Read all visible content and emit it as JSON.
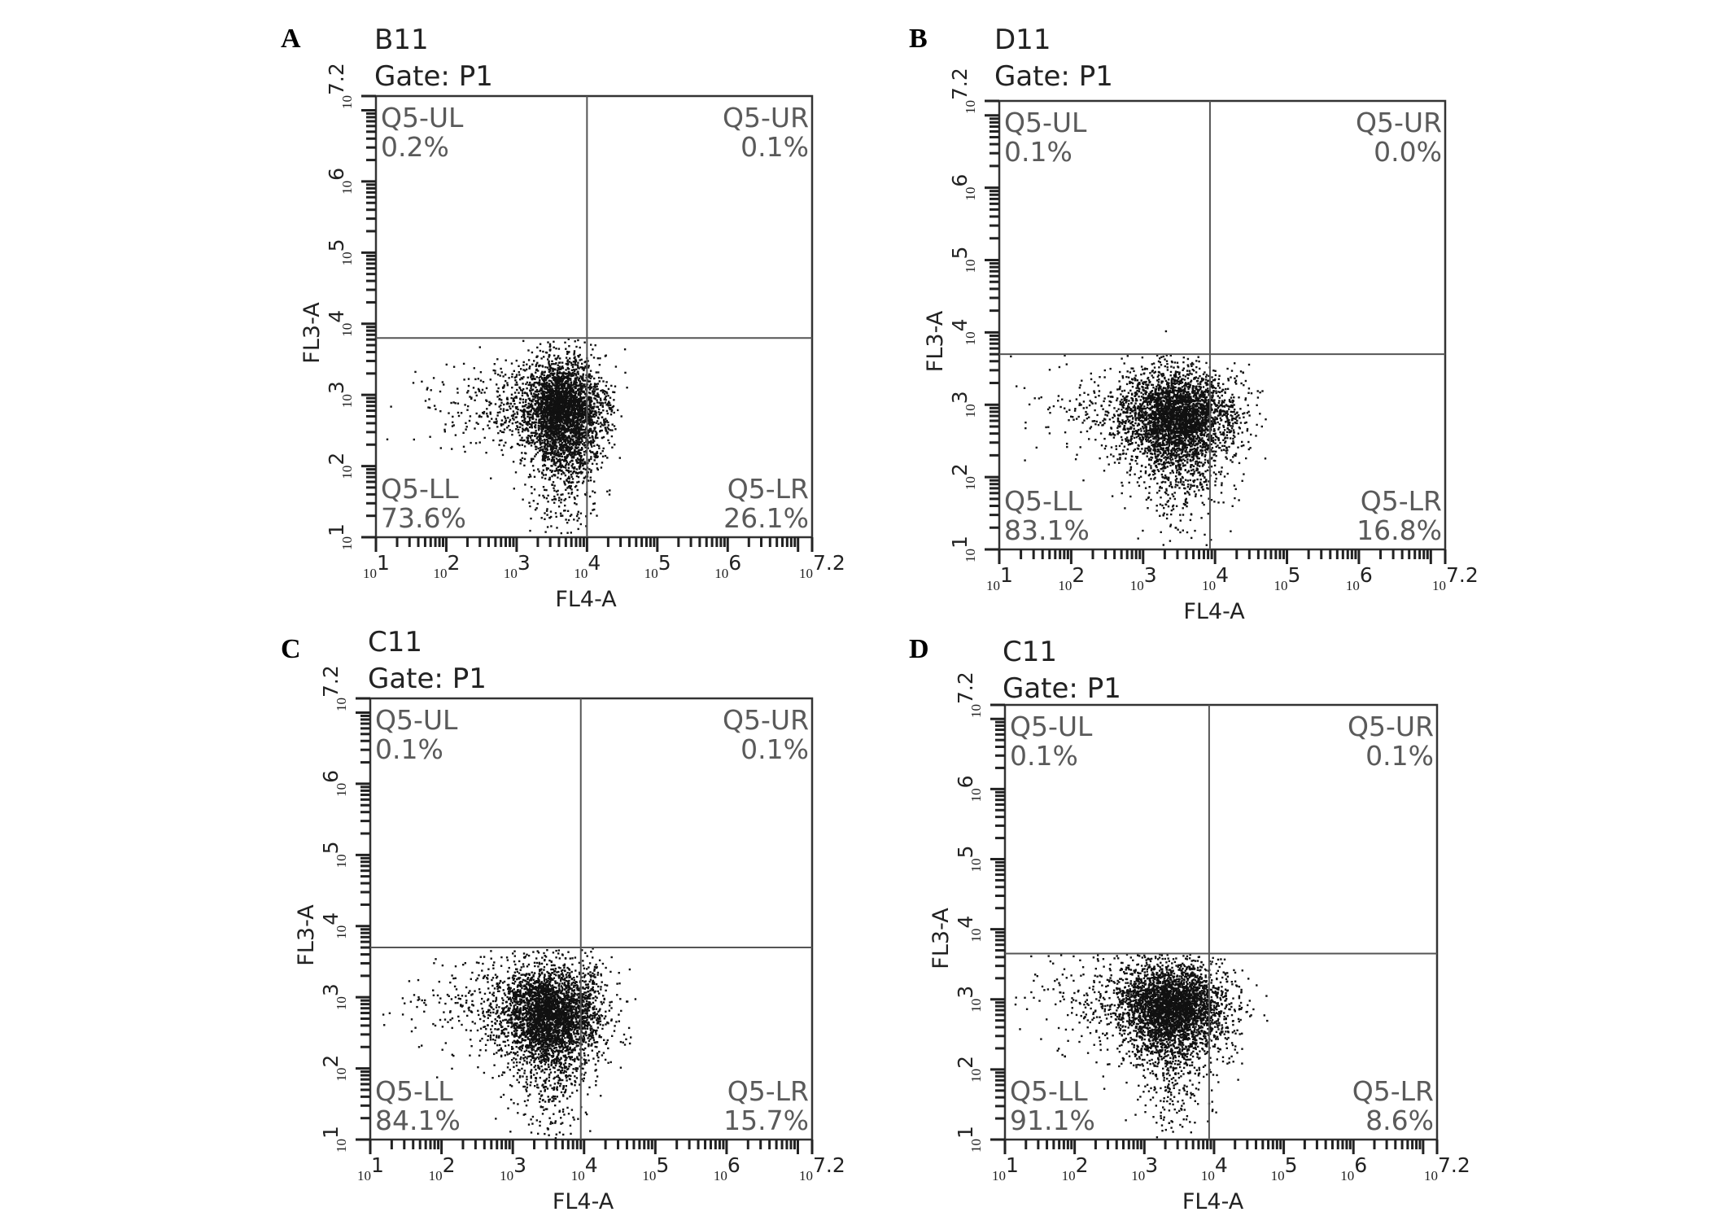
{
  "chart_data": [
    {
      "type": "scatter",
      "panel_label": "A",
      "sample": "B11",
      "gate": "Gate: P1",
      "xlabel": "FL4-A",
      "ylabel": "FL3-A",
      "x_scale": "log",
      "y_scale": "log",
      "xlim": [
        10,
        15848932
      ],
      "ylim": [
        10,
        15848932
      ],
      "x_tick_labels": [
        "1",
        "2",
        "3",
        "4",
        "5",
        "6",
        "7.2"
      ],
      "y_tick_labels": [
        "1",
        "2",
        "3",
        "4",
        "5",
        "6",
        "7.2"
      ],
      "gate_x": 10000,
      "gate_y": 6300,
      "quadrants": [
        {
          "name": "Q5-UL",
          "value": "0.2%"
        },
        {
          "name": "Q5-UR",
          "value": "0.1%"
        },
        {
          "name": "Q5-LL",
          "value": "73.6%"
        },
        {
          "name": "Q5-LR",
          "value": "26.1%"
        }
      ],
      "population": {
        "center_x": 4500,
        "center_y": 700,
        "spread_x_decades": 0.28,
        "spread_y_decades": 0.45
      }
    },
    {
      "type": "scatter",
      "panel_label": "B",
      "sample": "D11",
      "gate": "Gate: P1",
      "xlabel": "FL4-A",
      "ylabel": "FL3-A",
      "x_scale": "log",
      "y_scale": "log",
      "xlim": [
        10,
        15848932
      ],
      "ylim": [
        10,
        15848932
      ],
      "x_tick_labels": [
        "1",
        "2",
        "3",
        "4",
        "5",
        "6",
        "7.2"
      ],
      "y_tick_labels": [
        "1",
        "2",
        "3",
        "4",
        "5",
        "6",
        "7.2"
      ],
      "gate_x": 8500,
      "gate_y": 5000,
      "quadrants": [
        {
          "name": "Q5-UL",
          "value": "0.1%"
        },
        {
          "name": "Q5-UR",
          "value": "0.0%"
        },
        {
          "name": "Q5-LL",
          "value": "83.1%"
        },
        {
          "name": "Q5-LR",
          "value": "16.8%"
        }
      ],
      "population": {
        "center_x": 3200,
        "center_y": 800,
        "spread_x_decades": 0.38,
        "spread_y_decades": 0.4
      }
    },
    {
      "type": "scatter",
      "panel_label": "C",
      "sample": "C11",
      "gate": "Gate: P1",
      "xlabel": "FL4-A",
      "ylabel": "FL3-A",
      "x_scale": "log",
      "y_scale": "log",
      "xlim": [
        10,
        15848932
      ],
      "ylim": [
        10,
        15848932
      ],
      "x_tick_labels": [
        "1",
        "2",
        "3",
        "4",
        "5",
        "6",
        "7.2"
      ],
      "y_tick_labels": [
        "1",
        "2",
        "3",
        "4",
        "5",
        "6",
        "7.2"
      ],
      "gate_x": 9000,
      "gate_y": 5000,
      "quadrants": [
        {
          "name": "Q5-UL",
          "value": "0.1%"
        },
        {
          "name": "Q5-UR",
          "value": "0.1%"
        },
        {
          "name": "Q5-LL",
          "value": "84.1%"
        },
        {
          "name": "Q5-LR",
          "value": "15.7%"
        }
      ],
      "population": {
        "center_x": 3500,
        "center_y": 700,
        "spread_x_decades": 0.35,
        "spread_y_decades": 0.42
      }
    },
    {
      "type": "scatter",
      "panel_label": "D",
      "sample": "C11",
      "gate": "Gate: P1",
      "xlabel": "FL4-A",
      "ylabel": "FL3-A",
      "x_scale": "log",
      "y_scale": "log",
      "xlim": [
        10,
        15848932
      ],
      "ylim": [
        10,
        15848932
      ],
      "x_tick_labels": [
        "1",
        "2",
        "3",
        "4",
        "5",
        "6",
        "7.2"
      ],
      "y_tick_labels": [
        "1",
        "2",
        "3",
        "4",
        "5",
        "6",
        "7.2"
      ],
      "gate_x": 8500,
      "gate_y": 4500,
      "quadrants": [
        {
          "name": "Q5-UL",
          "value": "0.1%"
        },
        {
          "name": "Q5-UR",
          "value": "0.1%"
        },
        {
          "name": "Q5-LL",
          "value": "91.1%"
        },
        {
          "name": "Q5-LR",
          "value": "8.6%"
        }
      ],
      "population": {
        "center_x": 2500,
        "center_y": 900,
        "spread_x_decades": 0.4,
        "spread_y_decades": 0.38
      }
    }
  ]
}
